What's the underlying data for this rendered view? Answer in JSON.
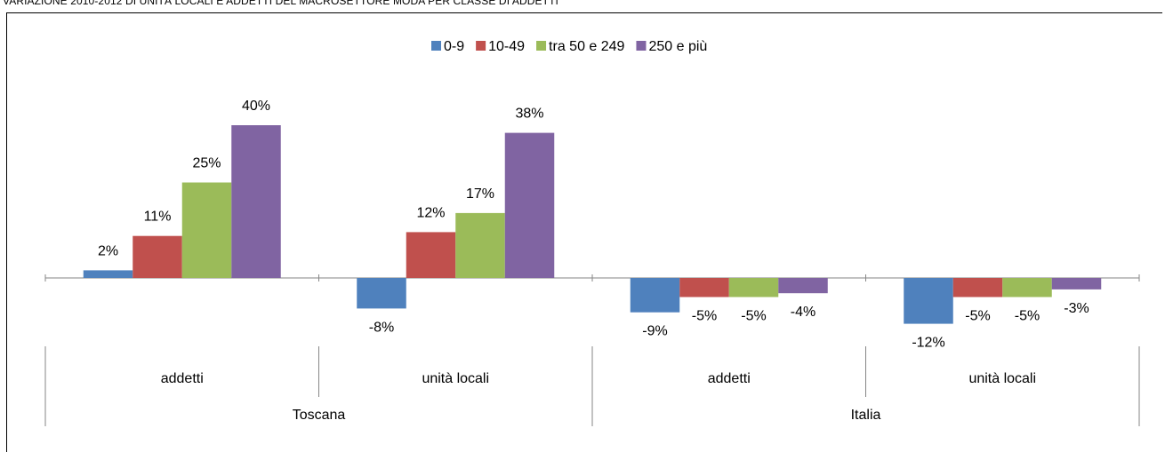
{
  "title": "VARIAZIONE 2010-2012 DI UNITÀ LOCALI E ADDETTI DEL MACROSETTORE MODA PER CLASSE DI ADDETTI",
  "chart_data": {
    "type": "bar",
    "title": "VARIAZIONE 2010-2012 DI UNITÀ LOCALI E ADDETTI DEL MACROSETTORE MODA PER CLASSE DI ADDETTI",
    "categories": [
      "addetti",
      "unità locali",
      "addetti",
      "unità locali"
    ],
    "groups": [
      {
        "label": "Toscana",
        "categories": [
          "addetti",
          "unità locali"
        ]
      },
      {
        "label": "Italia",
        "categories": [
          "addetti",
          "unità locali"
        ]
      }
    ],
    "series": [
      {
        "name": "0-9",
        "color": "#4F81BD",
        "values": [
          2,
          -8,
          -9,
          -12
        ],
        "labels": [
          "2%",
          "-8%",
          "-9%",
          "-12%"
        ]
      },
      {
        "name": "10-49",
        "color": "#C0504D",
        "values": [
          11,
          12,
          -5,
          -5
        ],
        "labels": [
          "11%",
          "12%",
          "-5%",
          "-5%"
        ]
      },
      {
        "name": "tra 50 e 249",
        "color": "#9BBB59",
        "values": [
          25,
          17,
          -5,
          -5
        ],
        "labels": [
          "25%",
          "17%",
          "-5%",
          "-5%"
        ]
      },
      {
        "name": "250 e più",
        "color": "#8064A2",
        "values": [
          40,
          38,
          -4,
          -3
        ],
        "labels": [
          "40%",
          "38%",
          "-4%",
          "-3%"
        ]
      }
    ],
    "unit": "%",
    "legend_position": "top-center",
    "grid": false
  }
}
